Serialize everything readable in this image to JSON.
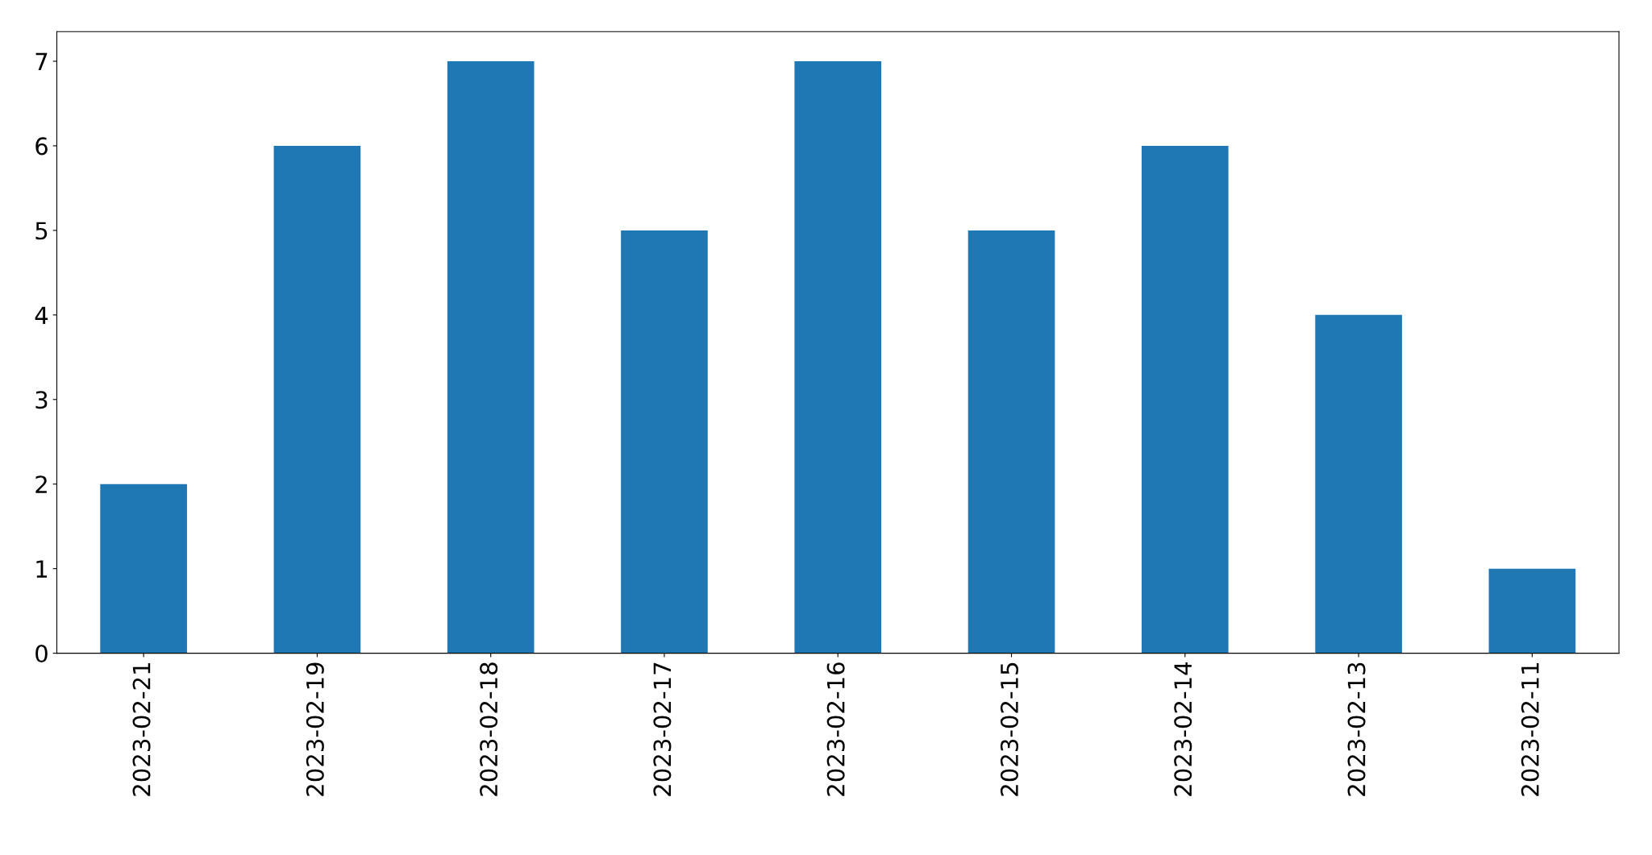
{
  "chart_data": {
    "type": "bar",
    "categories": [
      "2023-02-21",
      "2023-02-19",
      "2023-02-18",
      "2023-02-17",
      "2023-02-16",
      "2023-02-15",
      "2023-02-14",
      "2023-02-13",
      "2023-02-11"
    ],
    "values": [
      2,
      6,
      7,
      5,
      7,
      5,
      6,
      4,
      1
    ],
    "color": "#1f77b4",
    "ylim": [
      0,
      7.35
    ],
    "yticks": [
      0,
      1,
      2,
      3,
      4,
      5,
      6,
      7
    ],
    "grid": false,
    "legend": false
  }
}
